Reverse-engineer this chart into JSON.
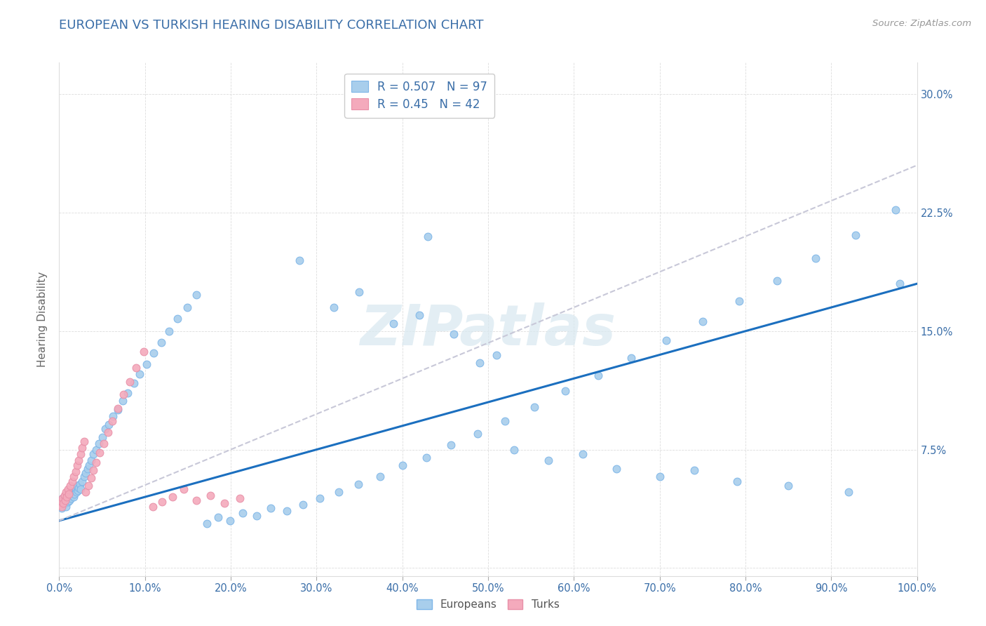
{
  "title": "EUROPEAN VS TURKISH HEARING DISABILITY CORRELATION CHART",
  "source": "Source: ZipAtlas.com",
  "ylabel": "Hearing Disability",
  "watermark": "ZIPatlas",
  "europeans_R": 0.507,
  "europeans_N": 97,
  "turks_R": 0.45,
  "turks_N": 42,
  "european_color": "#A8CEEC",
  "european_edge": "#7EB6E8",
  "turkish_color": "#F4AABC",
  "turkish_edge": "#E890A8",
  "regression_blue": "#1B6FBF",
  "regression_dashed": "#C8C8D8",
  "xlim": [
    0.0,
    1.0
  ],
  "ylim": [
    -0.005,
    0.32
  ],
  "title_color": "#3A6EA8",
  "tick_color": "#3A6EA8",
  "ylabel_color": "#666666",
  "grid_color": "#DDDDDD",
  "eu_x": [
    0.001,
    0.002,
    0.003,
    0.004,
    0.005,
    0.006,
    0.007,
    0.008,
    0.009,
    0.01,
    0.011,
    0.012,
    0.013,
    0.014,
    0.015,
    0.016,
    0.017,
    0.018,
    0.019,
    0.02,
    0.021,
    0.022,
    0.023,
    0.024,
    0.025,
    0.027,
    0.029,
    0.031,
    0.033,
    0.035,
    0.037,
    0.04,
    0.043,
    0.046,
    0.05,
    0.054,
    0.058,
    0.063,
    0.068,
    0.074,
    0.08,
    0.087,
    0.094,
    0.102,
    0.11,
    0.119,
    0.128,
    0.138,
    0.149,
    0.16,
    0.172,
    0.185,
    0.199,
    0.214,
    0.23,
    0.247,
    0.265,
    0.284,
    0.304,
    0.326,
    0.349,
    0.374,
    0.4,
    0.428,
    0.457,
    0.488,
    0.52,
    0.554,
    0.59,
    0.628,
    0.667,
    0.708,
    0.75,
    0.793,
    0.837,
    0.882,
    0.928,
    0.975,
    0.49,
    0.51,
    0.43,
    0.28,
    0.32,
    0.35,
    0.39,
    0.42,
    0.46,
    0.53,
    0.57,
    0.61,
    0.65,
    0.7,
    0.74,
    0.79,
    0.85,
    0.92,
    0.98
  ],
  "eu_y": [
    0.04,
    0.042,
    0.038,
    0.044,
    0.04,
    0.043,
    0.041,
    0.039,
    0.044,
    0.042,
    0.045,
    0.043,
    0.047,
    0.044,
    0.046,
    0.048,
    0.045,
    0.047,
    0.05,
    0.048,
    0.052,
    0.049,
    0.051,
    0.053,
    0.05,
    0.055,
    0.058,
    0.06,
    0.063,
    0.065,
    0.068,
    0.072,
    0.075,
    0.079,
    0.083,
    0.088,
    0.091,
    0.096,
    0.1,
    0.106,
    0.111,
    0.117,
    0.123,
    0.129,
    0.136,
    0.143,
    0.15,
    0.158,
    0.165,
    0.173,
    0.028,
    0.032,
    0.03,
    0.035,
    0.033,
    0.038,
    0.036,
    0.04,
    0.044,
    0.048,
    0.053,
    0.058,
    0.065,
    0.07,
    0.078,
    0.085,
    0.093,
    0.102,
    0.112,
    0.122,
    0.133,
    0.144,
    0.156,
    0.169,
    0.182,
    0.196,
    0.211,
    0.227,
    0.13,
    0.135,
    0.21,
    0.195,
    0.165,
    0.175,
    0.155,
    0.16,
    0.148,
    0.075,
    0.068,
    0.072,
    0.063,
    0.058,
    0.062,
    0.055,
    0.052,
    0.048,
    0.18
  ],
  "tk_x": [
    0.001,
    0.002,
    0.003,
    0.004,
    0.005,
    0.006,
    0.007,
    0.008,
    0.009,
    0.01,
    0.011,
    0.013,
    0.015,
    0.017,
    0.019,
    0.021,
    0.023,
    0.025,
    0.027,
    0.029,
    0.031,
    0.034,
    0.037,
    0.04,
    0.043,
    0.047,
    0.052,
    0.057,
    0.062,
    0.068,
    0.075,
    0.082,
    0.09,
    0.099,
    0.109,
    0.12,
    0.132,
    0.145,
    0.16,
    0.176,
    0.193,
    0.211
  ],
  "tk_y": [
    0.04,
    0.042,
    0.039,
    0.044,
    0.041,
    0.046,
    0.043,
    0.048,
    0.045,
    0.05,
    0.047,
    0.052,
    0.055,
    0.058,
    0.061,
    0.065,
    0.068,
    0.072,
    0.076,
    0.08,
    0.048,
    0.052,
    0.057,
    0.062,
    0.067,
    0.073,
    0.079,
    0.086,
    0.093,
    0.101,
    0.11,
    0.118,
    0.127,
    0.137,
    0.039,
    0.042,
    0.045,
    0.05,
    0.043,
    0.046,
    0.041,
    0.044
  ],
  "blue_line_x": [
    0.0,
    1.0
  ],
  "blue_line_y": [
    0.03,
    0.18
  ],
  "dash_line_x": [
    0.0,
    1.0
  ],
  "dash_line_y": [
    0.03,
    0.255
  ]
}
